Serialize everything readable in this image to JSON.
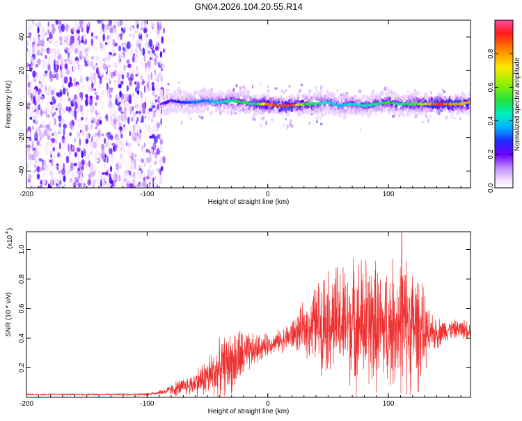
{
  "title": "GN04.2026.104.20.55.R14",
  "top_plot": {
    "xlabel": "Height of straight line (km)",
    "ylabel": "Frequency (Hz)",
    "xlim": [
      -200,
      168
    ],
    "ylim": [
      -50,
      50
    ],
    "x_ticks": [
      -200,
      -100,
      0,
      100
    ],
    "x_tick_labels": [
      "-200",
      "-100",
      "0",
      "100"
    ],
    "y_ticks": [
      40,
      20,
      0,
      -20,
      -40
    ],
    "y_tick_labels": [
      "40",
      "20",
      "0",
      "-20",
      "-40"
    ]
  },
  "colorbar": {
    "label": "Normalized spectral amplitude",
    "range": [
      0,
      1
    ],
    "ticks": [
      0.0,
      0.2,
      0.4,
      0.6,
      0.8
    ],
    "tick_labels": [
      "0.0",
      "0.2",
      "0.4",
      "0.6",
      "0.8"
    ]
  },
  "bottom_plot": {
    "xlabel": "Height of straight line (km)",
    "ylabel": "SNR (10 * v/v)",
    "scale_label": "(x10",
    "scale_exp": "4",
    "xlim": [
      -200,
      168
    ],
    "ylim": [
      0,
      1.12
    ],
    "x_ticks": [
      -200,
      -100,
      0,
      100
    ],
    "x_tick_labels": [
      "-200",
      "-100",
      "0",
      "100"
    ],
    "y_ticks": [
      0.2,
      0.4,
      0.6,
      0.8,
      1.0
    ],
    "y_tick_labels": [
      "0.2",
      "0.4",
      "0.6",
      "0.8",
      "1.0"
    ]
  },
  "chart_data": [
    {
      "type": "heatmap",
      "title": "GN04.2026.104.20.55.R14",
      "xlabel": "Height of straight line (km)",
      "ylabel": "Frequency (Hz)",
      "colorbar_label": "Normalized spectral amplitude",
      "xlim": [
        -200,
        168
      ],
      "ylim": [
        -50,
        50
      ],
      "ridge": {
        "x": [
          -88,
          -80,
          -70,
          -60,
          -50,
          -40,
          -30,
          -20,
          -10,
          0,
          10,
          20,
          30,
          40,
          50,
          60,
          70,
          80,
          90,
          100,
          110,
          120,
          130,
          140,
          150,
          160,
          168
        ],
        "freq": [
          0,
          2,
          1,
          1,
          2,
          1,
          2,
          1,
          0,
          0,
          -1,
          -1,
          0,
          0,
          1,
          -1,
          0,
          -1,
          0,
          1,
          0,
          0,
          0,
          0,
          0,
          0,
          1
        ],
        "amplitude": [
          0.2,
          0.25,
          0.3,
          0.35,
          0.35,
          0.45,
          0.5,
          0.55,
          0.5,
          0.85,
          0.95,
          0.95,
          0.6,
          0.5,
          0.45,
          0.4,
          0.45,
          0.45,
          0.5,
          0.55,
          0.5,
          0.55,
          0.7,
          0.95,
          0.9,
          0.85,
          0.8
        ]
      },
      "noise_region_x": [
        -200,
        -86
      ]
    },
    {
      "type": "line",
      "title": "",
      "xlabel": "Height of straight line (km)",
      "ylabel": "SNR (10 * v/v)",
      "units_scale": "x10^4",
      "xlim": [
        -200,
        168
      ],
      "ylim": [
        0,
        1.12
      ],
      "series": [
        {
          "name": "SNR",
          "color": "#ee3030",
          "x": [
            -200,
            -150,
            -100,
            -85,
            -75,
            -65,
            -55,
            -45,
            -35,
            -25,
            -15,
            -5,
            5,
            15,
            25,
            35,
            45,
            55,
            65,
            75,
            85,
            95,
            105,
            115,
            125,
            135,
            150,
            168
          ],
          "mean": [
            0.02,
            0.02,
            0.02,
            0.04,
            0.06,
            0.08,
            0.12,
            0.16,
            0.22,
            0.26,
            0.3,
            0.34,
            0.37,
            0.4,
            0.44,
            0.48,
            0.52,
            0.52,
            0.5,
            0.5,
            0.5,
            0.46,
            0.5,
            0.5,
            0.46,
            0.42,
            0.46,
            0.46
          ],
          "amp": [
            0.005,
            0.005,
            0.008,
            0.02,
            0.05,
            0.06,
            0.1,
            0.16,
            0.18,
            0.2,
            0.12,
            0.08,
            0.06,
            0.08,
            0.12,
            0.2,
            0.3,
            0.34,
            0.36,
            0.4,
            0.42,
            0.36,
            0.4,
            0.42,
            0.36,
            0.12,
            0.06,
            0.06
          ],
          "peak_x": 111,
          "peak_value": 1.12
        }
      ]
    }
  ]
}
